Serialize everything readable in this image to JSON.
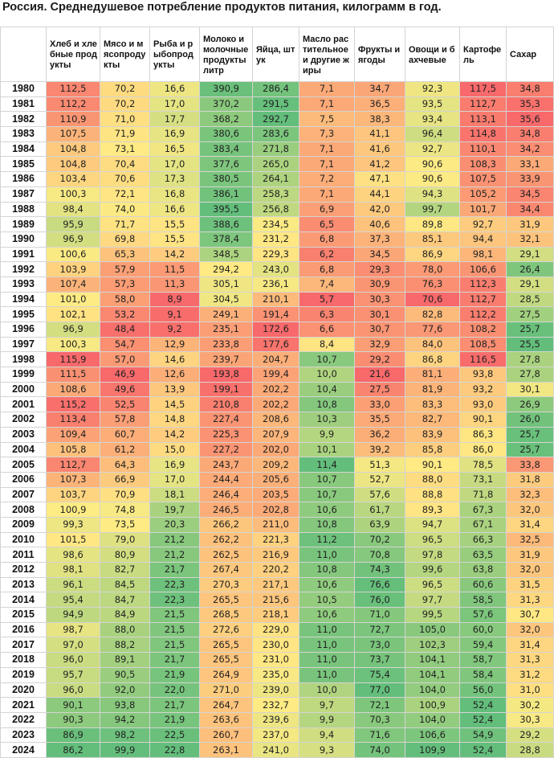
{
  "title": "Россия. Среднедушевое потребление продуктов питания, килограмм в год.",
  "chart_data": {
    "type": "heatmap",
    "title": "Россия. Среднедушевое потребление продуктов питания, килограмм в год.",
    "columns": [
      "Хлеб и хлебные продукты",
      "Мясо и мясопродукты",
      "Рыба и рыбопродукты",
      "Молоко и молочные продукты литр",
      "Яйца, штук",
      "Масло растительное и другие жиры",
      "Фрукты и ягоды",
      "Овощи и бахчевые",
      "Картофель",
      "Сахар"
    ],
    "rows": [
      {
        "year": "1980",
        "values": [
          "112,5",
          "70,2",
          "16,6",
          "390,9",
          "286,4",
          "7,1",
          "34,7",
          "92,3",
          "117,5",
          "34,8"
        ]
      },
      {
        "year": "1981",
        "values": [
          "112,2",
          "70,2",
          "17,0",
          "370,2",
          "291,5",
          "7,1",
          "36,5",
          "93,5",
          "112,7",
          "35,3"
        ]
      },
      {
        "year": "1982",
        "values": [
          "110,9",
          "71,0",
          "17,7",
          "368,2",
          "292,7",
          "7,5",
          "38,3",
          "93,4",
          "113,1",
          "35,6"
        ]
      },
      {
        "year": "1983",
        "values": [
          "107,5",
          "71,9",
          "16,9",
          "380,6",
          "283,6",
          "7,3",
          "41,1",
          "96,4",
          "114,8",
          "34,8"
        ]
      },
      {
        "year": "1984",
        "values": [
          "104,8",
          "73,1",
          "16,5",
          "383,4",
          "271,8",
          "7,1",
          "41,6",
          "92,7",
          "110,1",
          "34,2"
        ]
      },
      {
        "year": "1985",
        "values": [
          "104,8",
          "70,4",
          "17,0",
          "377,6",
          "265,0",
          "7,1",
          "41,2",
          "90,6",
          "108,3",
          "33,1"
        ]
      },
      {
        "year": "1986",
        "values": [
          "103,4",
          "70,6",
          "17,3",
          "380,5",
          "264,1",
          "7,2",
          "47,1",
          "90,6",
          "107,5",
          "33,9"
        ]
      },
      {
        "year": "1987",
        "values": [
          "100,3",
          "72,1",
          "16,8",
          "386,1",
          "258,3",
          "7,1",
          "44,1",
          "94,3",
          "105,2",
          "34,5"
        ]
      },
      {
        "year": "1988",
        "values": [
          "98,4",
          "74,0",
          "16,6",
          "395,5",
          "256,8",
          "6,9",
          "42,0",
          "99,7",
          "101,7",
          "34,4"
        ]
      },
      {
        "year": "1989",
        "values": [
          "95,9",
          "71,7",
          "15,5",
          "388,6",
          "234,5",
          "6,5",
          "40,6",
          "89,8",
          "92,7",
          "31,9"
        ]
      },
      {
        "year": "1990",
        "values": [
          "96,9",
          "69,8",
          "15,5",
          "378,4",
          "231,2",
          "6,8",
          "37,3",
          "85,1",
          "94,4",
          "32,1"
        ]
      },
      {
        "year": "1991",
        "values": [
          "100,6",
          "65,3",
          "14,2",
          "348,5",
          "229,3",
          "6,2",
          "34,5",
          "86,9",
          "98,1",
          "29,1"
        ]
      },
      {
        "year": "1992",
        "values": [
          "103,9",
          "57,9",
          "11,5",
          "294,2",
          "243,0",
          "6,8",
          "29,3",
          "78,0",
          "106,6",
          "26,4"
        ]
      },
      {
        "year": "1993",
        "values": [
          "107,4",
          "57,3",
          "11,3",
          "305,1",
          "236,1",
          "7,4",
          "30,9",
          "76,3",
          "112,3",
          "29,1"
        ]
      },
      {
        "year": "1994",
        "values": [
          "101,0",
          "58,0",
          "8,9",
          "304,5",
          "210,1",
          "5,7",
          "30,3",
          "70,6",
          "112,7",
          "28,5"
        ]
      },
      {
        "year": "1995",
        "values": [
          "102,1",
          "53,2",
          "9,1",
          "249,1",
          "191,4",
          "6,3",
          "30,1",
          "82,8",
          "112,2",
          "27,5"
        ]
      },
      {
        "year": "1996",
        "values": [
          "96,9",
          "48,4",
          "9,2",
          "235,1",
          "172,6",
          "6,6",
          "30,7",
          "77,6",
          "108,2",
          "25,7"
        ]
      },
      {
        "year": "1997",
        "values": [
          "100,3",
          "54,7",
          "12,9",
          "233,8",
          "177,6",
          "8,4",
          "32,9",
          "84,0",
          "108,5",
          "25,5"
        ]
      },
      {
        "year": "1998",
        "values": [
          "115,9",
          "57,0",
          "14,6",
          "239,7",
          "204,7",
          "10,7",
          "29,2",
          "86,8",
          "116,5",
          "27,8"
        ]
      },
      {
        "year": "1999",
        "values": [
          "111,5",
          "46,9",
          "12,6",
          "193,8",
          "199,4",
          "10,0",
          "21,6",
          "81,1",
          "93,8",
          "27,8"
        ]
      },
      {
        "year": "2000",
        "values": [
          "108,6",
          "49,6",
          "13,9",
          "199,1",
          "202,2",
          "10,4",
          "27,5",
          "81,9",
          "93,2",
          "30,1"
        ]
      },
      {
        "year": "2001",
        "values": [
          "115,2",
          "52,5",
          "14,5",
          "210,8",
          "202,2",
          "10,8",
          "33,0",
          "83,3",
          "93,0",
          "26,9"
        ]
      },
      {
        "year": "2002",
        "values": [
          "113,4",
          "57,8",
          "14,8",
          "227,4",
          "208,6",
          "10,3",
          "35,5",
          "82,7",
          "90,1",
          "26,0"
        ]
      },
      {
        "year": "2003",
        "values": [
          "109,4",
          "60,7",
          "14,2",
          "225,3",
          "207,9",
          "9,9",
          "36,2",
          "83,9",
          "86,3",
          "25,7"
        ]
      },
      {
        "year": "2004",
        "values": [
          "105,8",
          "61,2",
          "15,0",
          "227,2",
          "202,0",
          "10,1",
          "39,2",
          "85,8",
          "86,0",
          "25,7"
        ]
      },
      {
        "year": "2005",
        "values": [
          "112,7",
          "64,3",
          "16,9",
          "243,7",
          "209,2",
          "11,4",
          "51,3",
          "90,1",
          "78,5",
          "33,8"
        ]
      },
      {
        "year": "2006",
        "values": [
          "107,3",
          "66,9",
          "17,0",
          "244,4",
          "205,6",
          "10,7",
          "52,7",
          "88,0",
          "73,1",
          "31,8"
        ]
      },
      {
        "year": "2007",
        "values": [
          "103,7",
          "70,9",
          "18,1",
          "246,4",
          "203,5",
          "10,7",
          "57,6",
          "88,8",
          "71,8",
          "32,3"
        ]
      },
      {
        "year": "2008",
        "values": [
          "100,9",
          "74,8",
          "19,7",
          "246,5",
          "202,8",
          "10,6",
          "61,7",
          "89,3",
          "67,3",
          "32,0"
        ]
      },
      {
        "year": "2009",
        "values": [
          "99,3",
          "73,5",
          "20,3",
          "266,2",
          "211,0",
          "10,8",
          "63,9",
          "94,7",
          "67,1",
          "31,4"
        ]
      },
      {
        "year": "2010",
        "values": [
          "101,5",
          "79,0",
          "21,2",
          "262,2",
          "221,3",
          "11,2",
          "70,2",
          "96,5",
          "66,3",
          "32,5"
        ]
      },
      {
        "year": "2011",
        "values": [
          "98,6",
          "80,9",
          "21,2",
          "262,5",
          "216,9",
          "11,0",
          "70,8",
          "97,8",
          "63,5",
          "31,9"
        ]
      },
      {
        "year": "2012",
        "values": [
          "98,1",
          "82,7",
          "21,7",
          "267,4",
          "220,2",
          "10,8",
          "74,3",
          "99,6",
          "63,8",
          "32,0"
        ]
      },
      {
        "year": "2013",
        "values": [
          "96,1",
          "84,5",
          "22,3",
          "270,3",
          "217,1",
          "10,6",
          "76,6",
          "96,5",
          "60,6",
          "31,5"
        ]
      },
      {
        "year": "2014",
        "values": [
          "95,4",
          "84,7",
          "22,3",
          "265,5",
          "215,6",
          "10,5",
          "76,0",
          "97,7",
          "58,5",
          "31,3"
        ]
      },
      {
        "year": "2015",
        "values": [
          "94,9",
          "84,9",
          "21,5",
          "268,5",
          "218,1",
          "10,6",
          "71,0",
          "99,5",
          "57,6",
          "30,7"
        ]
      },
      {
        "year": "2016",
        "values": [
          "98,7",
          "88,0",
          "21,5",
          "272,6",
          "229,0",
          "11,0",
          "72,7",
          "105,0",
          "60,0",
          "32,0"
        ]
      },
      {
        "year": "2017",
        "values": [
          "97,0",
          "88,2",
          "21,5",
          "265,5",
          "230,0",
          "11,0",
          "73,0",
          "102,3",
          "59,4",
          "31,4"
        ]
      },
      {
        "year": "2018",
        "values": [
          "96,0",
          "89,1",
          "21,7",
          "265,5",
          "231,0",
          "11,0",
          "73,7",
          "104,1",
          "58,7",
          "31,3"
        ]
      },
      {
        "year": "2019",
        "values": [
          "95,7",
          "90,5",
          "21,9",
          "264,9",
          "235,0",
          "11,0",
          "75,4",
          "104,1",
          "58,4",
          "31,2"
        ]
      },
      {
        "year": "2020",
        "values": [
          "96,0",
          "92,0",
          "22,0",
          "271,0",
          "239,0",
          "10,0",
          "77,0",
          "104,0",
          "56,0",
          "31,0"
        ]
      },
      {
        "year": "2021",
        "values": [
          "90,1",
          "93,8",
          "21,7",
          "264,7",
          "232,7",
          "9,7",
          "72,1",
          "100,9",
          "52,4",
          "30,2"
        ]
      },
      {
        "year": "2022",
        "values": [
          "90,3",
          "94,2",
          "21,9",
          "263,6",
          "239,6",
          "9,9",
          "70,3",
          "104,0",
          "52,4",
          "30,3"
        ]
      },
      {
        "year": "2023",
        "values": [
          "86,9",
          "98,2",
          "22,5",
          "260,7",
          "237,0",
          "9,4",
          "71,6",
          "106,6",
          "54,9",
          "29,2"
        ]
      },
      {
        "year": "2024",
        "values": [
          "86,2",
          "99,9",
          "22,8",
          "263,1",
          "241,0",
          "9,3",
          "74,0",
          "109,9",
          "52,4",
          "28,8"
        ]
      }
    ],
    "color_scale": {
      "low": "#f8696b",
      "mid": "#ffeb84",
      "high": "#63be7b"
    },
    "color_direction": [
      "high-red",
      "low-red",
      "low-red",
      "low-red",
      "low-red",
      "low-red",
      "low-red",
      "low-red",
      "high-red",
      "high-red"
    ]
  }
}
